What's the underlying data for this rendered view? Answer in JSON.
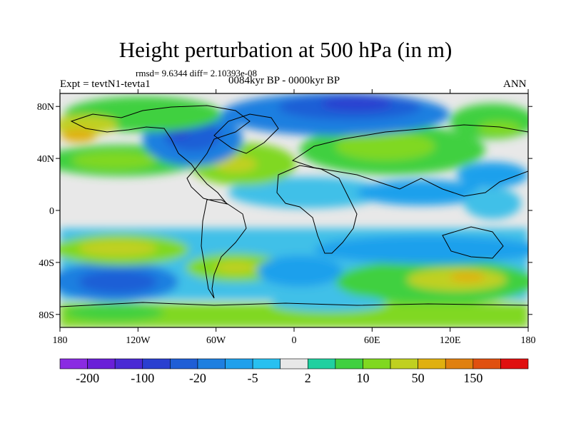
{
  "title": "Height perturbation at 500 hPa (in m)",
  "stats": "rmsd= 9.6344 diff= 2.10393e-08",
  "left_label": "Expt = tevtN1-tevta1",
  "center_label": "0084kyr BP - 0000kyr BP",
  "right_label": "ANN",
  "map": {
    "lon_range": [
      -180,
      180
    ],
    "lat_range": [
      -90,
      90
    ],
    "lat_ticks": [
      {
        "value": 80,
        "label": "80N"
      },
      {
        "value": 40,
        "label": "40N"
      },
      {
        "value": 0,
        "label": "0"
      },
      {
        "value": -40,
        "label": "40S"
      },
      {
        "value": -80,
        "label": "80S"
      }
    ],
    "lon_ticks": [
      {
        "value": -180,
        "label": "180"
      },
      {
        "value": -120,
        "label": "120W"
      },
      {
        "value": -60,
        "label": "60W"
      },
      {
        "value": 0,
        "label": "0"
      },
      {
        "value": 60,
        "label": "60E"
      },
      {
        "value": 120,
        "label": "120E"
      },
      {
        "value": 180,
        "label": "180"
      }
    ]
  },
  "colorbar": {
    "colors": [
      "#8a2be2",
      "#6a1fd8",
      "#4a2ad4",
      "#2a3fd0",
      "#1f5ed6",
      "#1e7fe0",
      "#1fa0ec",
      "#28c0f0",
      "#e8e8e8",
      "#20d0a0",
      "#40d040",
      "#80d820",
      "#c0d020",
      "#e0b010",
      "#e08010",
      "#e05010",
      "#e01010"
    ],
    "labels": [
      {
        "after_index": 0,
        "text": "-200"
      },
      {
        "after_index": 2,
        "text": "-100"
      },
      {
        "after_index": 4,
        "text": "-20"
      },
      {
        "after_index": 6,
        "text": "-5"
      },
      {
        "after_index": 8,
        "text": "2"
      },
      {
        "after_index": 10,
        "text": "10"
      },
      {
        "after_index": 12,
        "text": "50"
      },
      {
        "after_index": 14,
        "text": "150"
      }
    ]
  }
}
